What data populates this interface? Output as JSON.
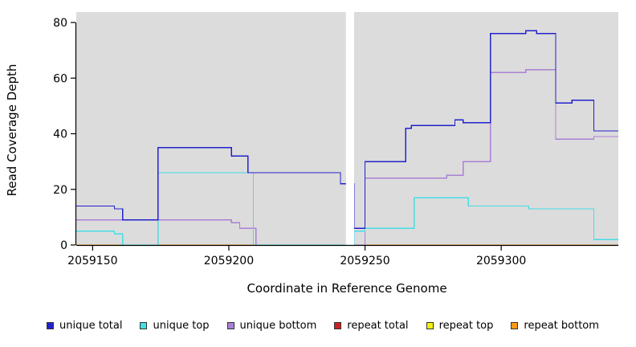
{
  "chart_data": {
    "type": "line",
    "subtype": "step",
    "title": "",
    "xlabel": "Coordinate in Reference Genome",
    "ylabel": "Read Coverage Depth",
    "xlim": [
      2059144,
      2059343
    ],
    "ylim": [
      0,
      80
    ],
    "xticks": [
      2059150,
      2059200,
      2059250,
      2059300
    ],
    "yticks": [
      0,
      20,
      40,
      60,
      80
    ],
    "plot_bg": "#dcdcdc",
    "gap_region": {
      "x_start": 2059243,
      "x_end": 2059246,
      "color": "#ffffff"
    },
    "legend_position": "bottom",
    "series": [
      {
        "name": "repeat total",
        "color": "#cc2222",
        "points": [
          [
            2059144,
            0
          ]
        ]
      },
      {
        "name": "repeat top",
        "color": "#f2f20a",
        "points": [
          [
            2059144,
            0
          ]
        ]
      },
      {
        "name": "repeat bottom",
        "color": "#ff9913",
        "points": [
          [
            2059144,
            0
          ]
        ]
      },
      {
        "name": "unique bottom",
        "color": "#aa80d5",
        "points": [
          [
            2059144,
            9
          ],
          [
            2059201,
            8
          ],
          [
            2059204,
            6
          ],
          [
            2059210,
            0
          ],
          [
            2059250,
            24
          ],
          [
            2059280,
            25
          ],
          [
            2059286,
            30
          ],
          [
            2059296,
            62
          ],
          [
            2059309,
            63
          ],
          [
            2059320,
            38
          ],
          [
            2059334,
            39
          ]
        ]
      },
      {
        "name": "unique top",
        "color": "#45dde5",
        "points": [
          [
            2059144,
            5
          ],
          [
            2059158,
            4
          ],
          [
            2059161,
            0
          ],
          [
            2059174,
            26
          ],
          [
            2059209,
            0
          ],
          [
            2059246,
            5
          ],
          [
            2059250,
            6
          ],
          [
            2059268,
            17
          ],
          [
            2059288,
            14
          ],
          [
            2059310,
            13
          ],
          [
            2059334,
            2
          ]
        ]
      },
      {
        "name": "unique total",
        "color": "#2222cc",
        "points": [
          [
            2059144,
            14
          ],
          [
            2059158,
            13
          ],
          [
            2059161,
            9
          ],
          [
            2059174,
            35
          ],
          [
            2059201,
            32
          ],
          [
            2059207,
            26
          ],
          [
            2059241,
            22
          ],
          [
            2059246,
            6
          ],
          [
            2059250,
            30
          ],
          [
            2059265,
            42
          ],
          [
            2059267,
            43
          ],
          [
            2059283,
            45
          ],
          [
            2059286,
            44
          ],
          [
            2059296,
            76
          ],
          [
            2059309,
            77
          ],
          [
            2059313,
            76
          ],
          [
            2059320,
            51
          ],
          [
            2059326,
            52
          ],
          [
            2059334,
            41
          ]
        ]
      }
    ]
  },
  "legend": {
    "items": [
      {
        "label": "unique total",
        "color": "#2222cc"
      },
      {
        "label": "unique top",
        "color": "#45dde5"
      },
      {
        "label": "unique bottom",
        "color": "#aa80d5"
      },
      {
        "label": "repeat total",
        "color": "#cc2222"
      },
      {
        "label": "repeat top",
        "color": "#f2f20a"
      },
      {
        "label": "repeat bottom",
        "color": "#ff9913"
      }
    ]
  }
}
